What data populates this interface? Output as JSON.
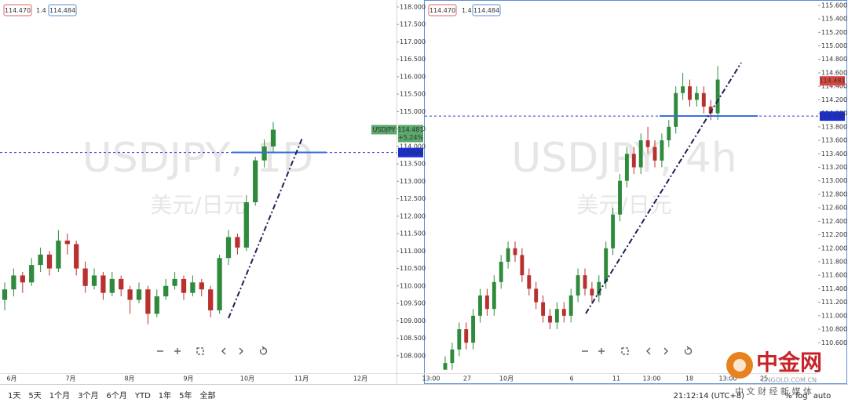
{
  "chart_data": [
    {
      "type": "candlestick",
      "symbol": "USDJPY",
      "watermark": "USDJPY, 1D",
      "watermark_sub": "美元/日元",
      "legend": {
        "bid": "114.470",
        "spread": "1.4",
        "ask": "114.484"
      },
      "last_price": 114.481,
      "change": "+5.24%",
      "hline": 113.824,
      "up_color": "#2f8a3c",
      "down_color": "#b8302f",
      "ylim": [
        107.5,
        118.2
      ],
      "yticks": [
        {
          "value": 108,
          "label": "108.000"
        },
        {
          "value": 108.5,
          "label": "108.500"
        },
        {
          "value": 109,
          "label": "109.000"
        },
        {
          "value": 109.5,
          "label": "109.500"
        },
        {
          "value": 110,
          "label": "110.000"
        },
        {
          "value": 110.5,
          "label": "110.500"
        },
        {
          "value": 111,
          "label": "111.000"
        },
        {
          "value": 111.5,
          "label": "111.500"
        },
        {
          "value": 112,
          "label": "112.000"
        },
        {
          "value": 112.5,
          "label": "112.500"
        },
        {
          "value": 113,
          "label": "113.000"
        },
        {
          "value": 113.5,
          "label": "113.500"
        },
        {
          "value": 114,
          "label": "114.000"
        },
        {
          "value": 114.5,
          "label": "114.500"
        },
        {
          "value": 115,
          "label": "115.000"
        },
        {
          "value": 115.5,
          "label": "115.500"
        },
        {
          "value": 116,
          "label": "116.000"
        },
        {
          "value": 116.5,
          "label": "116.500"
        },
        {
          "value": 117,
          "label": "117.000"
        },
        {
          "value": 117.5,
          "label": "117.500"
        },
        {
          "value": 118,
          "label": "118.000"
        }
      ],
      "x_labels": [
        "6月",
        "7月",
        "8月",
        "9月",
        "10月",
        "11月",
        "12月"
      ],
      "ohlc": [
        [
          109.6,
          110.1,
          109.3,
          109.9
        ],
        [
          109.9,
          110.5,
          109.7,
          110.3
        ],
        [
          110.3,
          110.4,
          109.8,
          110.1
        ],
        [
          110.1,
          110.8,
          110.0,
          110.6
        ],
        [
          110.6,
          111.1,
          110.4,
          110.9
        ],
        [
          110.9,
          111.0,
          110.3,
          110.5
        ],
        [
          110.5,
          111.6,
          110.4,
          111.3
        ],
        [
          111.3,
          111.5,
          110.9,
          111.2
        ],
        [
          111.2,
          111.3,
          110.3,
          110.5
        ],
        [
          110.5,
          110.7,
          109.8,
          110.0
        ],
        [
          110.0,
          110.5,
          109.9,
          110.3
        ],
        [
          110.3,
          110.4,
          109.6,
          109.8
        ],
        [
          109.8,
          110.4,
          109.7,
          110.2
        ],
        [
          110.2,
          110.3,
          109.7,
          109.9
        ],
        [
          109.9,
          110.0,
          109.2,
          109.6
        ],
        [
          109.6,
          110.1,
          109.5,
          109.9
        ],
        [
          109.9,
          110.0,
          108.9,
          109.2
        ],
        [
          109.2,
          109.9,
          109.1,
          109.7
        ],
        [
          109.7,
          110.2,
          109.6,
          110.0
        ],
        [
          110.0,
          110.4,
          109.9,
          110.2
        ],
        [
          110.2,
          110.3,
          109.6,
          109.8
        ],
        [
          109.8,
          110.3,
          109.7,
          110.1
        ],
        [
          110.1,
          110.2,
          109.7,
          109.9
        ],
        [
          109.9,
          110.0,
          109.1,
          109.3
        ],
        [
          109.3,
          110.9,
          109.2,
          110.8
        ],
        [
          110.8,
          111.6,
          110.6,
          111.4
        ],
        [
          111.4,
          111.5,
          110.9,
          111.1
        ],
        [
          111.1,
          112.6,
          111.0,
          112.4
        ],
        [
          112.4,
          113.7,
          112.3,
          113.6
        ],
        [
          113.6,
          114.2,
          113.4,
          114.0
        ],
        [
          114.0,
          114.7,
          113.8,
          114.48
        ]
      ]
    },
    {
      "type": "candlestick",
      "watermark": "USDJPY, 4h",
      "watermark_sub": "美元/日元",
      "legend": {
        "bid": "114.470",
        "spread": "1.4",
        "ask": "114.484"
      },
      "last_price": 114.481,
      "hline": 113.959,
      "up_color": "#2f8a3c",
      "down_color": "#b8302f",
      "ylim": [
        110.15,
        115.68
      ],
      "yticks": [
        {
          "value": 110.6,
          "label": "110.600"
        },
        {
          "value": 110.8,
          "label": "110.800"
        },
        {
          "value": 111,
          "label": "111.000"
        },
        {
          "value": 111.2,
          "label": "111.200"
        },
        {
          "value": 111.4,
          "label": "111.400"
        },
        {
          "value": 111.6,
          "label": "111.600"
        },
        {
          "value": 111.8,
          "label": "111.800"
        },
        {
          "value": 112,
          "label": "112.000"
        },
        {
          "value": 112.2,
          "label": "112.200"
        },
        {
          "value": 112.4,
          "label": "112.400"
        },
        {
          "value": 112.6,
          "label": "112.600"
        },
        {
          "value": 112.8,
          "label": "112.800"
        },
        {
          "value": 113,
          "label": "113.000"
        },
        {
          "value": 113.2,
          "label": "113.200"
        },
        {
          "value": 113.4,
          "label": "113.400"
        },
        {
          "value": 113.6,
          "label": "113.600"
        },
        {
          "value": 113.8,
          "label": "113.800"
        },
        {
          "value": 114,
          "label": "114.000"
        },
        {
          "value": 114.2,
          "label": "114.200"
        },
        {
          "value": 114.4,
          "label": "114.400"
        },
        {
          "value": 114.6,
          "label": "114.600"
        },
        {
          "value": 114.8,
          "label": "114.800"
        },
        {
          "value": 115,
          "label": "115.000"
        },
        {
          "value": 115.2,
          "label": "115.200"
        },
        {
          "value": 115.4,
          "label": "115.400"
        },
        {
          "value": 115.6,
          "label": "115.600"
        }
      ],
      "x_labels": [
        "13:00",
        "27",
        "10月",
        "6",
        "11",
        "13:00",
        "18",
        "13:00",
        "25"
      ],
      "ohlc": [
        [
          110.2,
          110.4,
          110.2,
          110.3
        ],
        [
          110.3,
          110.6,
          110.2,
          110.5
        ],
        [
          110.5,
          110.9,
          110.4,
          110.8
        ],
        [
          110.8,
          110.9,
          110.5,
          110.6
        ],
        [
          110.6,
          111.1,
          110.5,
          111.0
        ],
        [
          111.0,
          111.4,
          110.9,
          111.3
        ],
        [
          111.3,
          111.4,
          111.0,
          111.1
        ],
        [
          111.1,
          111.6,
          111.0,
          111.5
        ],
        [
          111.5,
          111.9,
          111.4,
          111.8
        ],
        [
          111.8,
          112.1,
          111.7,
          112.0
        ],
        [
          112.0,
          112.1,
          111.8,
          111.9
        ],
        [
          111.9,
          112.0,
          111.5,
          111.6
        ],
        [
          111.6,
          111.7,
          111.3,
          111.4
        ],
        [
          111.4,
          111.5,
          111.1,
          111.2
        ],
        [
          111.2,
          111.3,
          110.9,
          111.0
        ],
        [
          111.0,
          111.1,
          110.8,
          110.9
        ],
        [
          110.9,
          111.2,
          110.8,
          111.1
        ],
        [
          111.1,
          111.2,
          110.9,
          111.0
        ],
        [
          111.0,
          111.4,
          110.9,
          111.3
        ],
        [
          111.3,
          111.7,
          111.2,
          111.6
        ],
        [
          111.6,
          111.7,
          111.3,
          111.4
        ],
        [
          111.4,
          111.5,
          111.2,
          111.3
        ],
        [
          111.3,
          111.6,
          111.2,
          111.5
        ],
        [
          111.5,
          112.1,
          111.4,
          112.0
        ],
        [
          112.0,
          112.6,
          111.9,
          112.5
        ],
        [
          112.5,
          113.1,
          112.4,
          113.0
        ],
        [
          113.0,
          113.5,
          112.9,
          113.4
        ],
        [
          113.4,
          113.5,
          113.1,
          113.2
        ],
        [
          113.2,
          113.7,
          113.1,
          113.6
        ],
        [
          113.6,
          113.8,
          113.4,
          113.5
        ],
        [
          113.5,
          113.6,
          113.2,
          113.3
        ],
        [
          113.3,
          113.7,
          113.2,
          113.6
        ],
        [
          113.6,
          113.9,
          113.5,
          113.8
        ],
        [
          113.8,
          114.4,
          113.7,
          114.3
        ],
        [
          114.3,
          114.6,
          114.2,
          114.4
        ],
        [
          114.4,
          114.5,
          114.1,
          114.2
        ],
        [
          114.2,
          114.4,
          114.1,
          114.3
        ],
        [
          114.3,
          114.4,
          114.0,
          114.1
        ],
        [
          114.1,
          114.2,
          113.9,
          114.0
        ],
        [
          114.0,
          114.7,
          113.9,
          114.5
        ]
      ]
    }
  ],
  "toolbar": {
    "ranges": [
      "1天",
      "5天",
      "1个月",
      "3个月",
      "6个月",
      "YTD",
      "1年",
      "5年",
      "全部"
    ],
    "time": "21:12:14 (UTC+8)",
    "percent": "%",
    "log": "log",
    "auto": "auto"
  },
  "logo": {
    "name": "中金网",
    "domain": "CNGOLD.COM.CN",
    "slogan": "中 文 财 经 新 媒 体"
  }
}
